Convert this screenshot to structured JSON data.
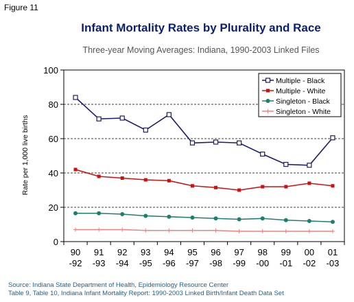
{
  "figure_label": "Figure 11",
  "source_lines": [
    "Source: Indiana State Department of Health, Epidemiology Resource Center",
    "Table 9, Table 10, Indiana Infant Mortality Report: 1990-2003  Linked Birth/Infant Death Data Set"
  ],
  "chart_data": {
    "type": "line",
    "title": "Infant Mortality Rates by Plurality and Race",
    "subtitle": "Three-year Moving Averages: Indiana, 1990-2003 Linked Files",
    "xlabel": "",
    "ylabel": "Rate per 1,000 live births",
    "ylim": [
      0,
      100
    ],
    "yticks": [
      0,
      20,
      40,
      60,
      80,
      100
    ],
    "grid": "dashed horizontal",
    "legend_position": "top-right",
    "categories": [
      [
        "90",
        "-92"
      ],
      [
        "91",
        "-93"
      ],
      [
        "92",
        "-94"
      ],
      [
        "93",
        "-95"
      ],
      [
        "94",
        "-96"
      ],
      [
        "95",
        "-97"
      ],
      [
        "96",
        "-98"
      ],
      [
        "97",
        "-99"
      ],
      [
        "98",
        "-00"
      ],
      [
        "99",
        "-01"
      ],
      [
        "00",
        "-02"
      ],
      [
        "01",
        "-03"
      ]
    ],
    "series": [
      {
        "name": "Multiple - Black",
        "color": "#1a1a6e",
        "marker": "open-square",
        "values": [
          84,
          71.5,
          72,
          65,
          74,
          57.5,
          58,
          57.5,
          51,
          45,
          44.5,
          60.5
        ]
      },
      {
        "name": "Multiple - White",
        "color": "#cc1111",
        "marker": "filled-square",
        "values": [
          42,
          38,
          37,
          36,
          35.5,
          32.5,
          31.5,
          30,
          32,
          32,
          34,
          32.5
        ]
      },
      {
        "name": "Singleton - Black",
        "color": "#1f7f6f",
        "marker": "filled-circle",
        "values": [
          16.5,
          16.5,
          16,
          15,
          14.5,
          14,
          13.5,
          13,
          13.5,
          12.5,
          12,
          11.5
        ]
      },
      {
        "name": "Singleton - White",
        "color": "#f08080",
        "marker": "plus",
        "values": [
          7,
          7,
          7,
          6.5,
          6.5,
          6.5,
          6.5,
          6,
          6,
          6,
          6,
          6
        ]
      }
    ]
  }
}
